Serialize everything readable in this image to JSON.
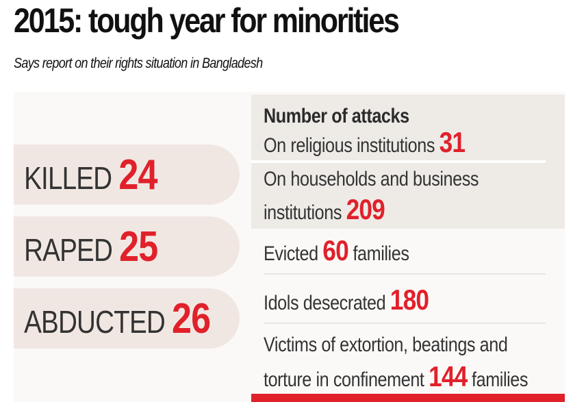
{
  "headline": "2015: tough year for minorities",
  "subheadline": "Says report on their rights situation in Bangladesh",
  "victims": [
    {
      "label": "KILLED",
      "value": "24"
    },
    {
      "label": "RAPED",
      "value": "25"
    },
    {
      "label": "ABDUCTED",
      "value": "26"
    }
  ],
  "attacks": {
    "heading": "Number of attacks",
    "religious": {
      "text": "On religious institutions",
      "value": "31"
    },
    "households": {
      "line1": "On households and business",
      "line2": "institutions",
      "value": "209"
    }
  },
  "evicted": {
    "before": "Evicted",
    "value": "60",
    "after": "families"
  },
  "idols": {
    "text": "Idols desecrated",
    "value": "180"
  },
  "extortion": {
    "line1": "Victims of extortion, beatings and",
    "line2": "torture in confinement",
    "value": "144",
    "after": "families"
  },
  "colors": {
    "accent": "#e0212b",
    "tag_bg": "#f1e7e2",
    "box_bg": "#eeebe7",
    "text": "#333333"
  }
}
